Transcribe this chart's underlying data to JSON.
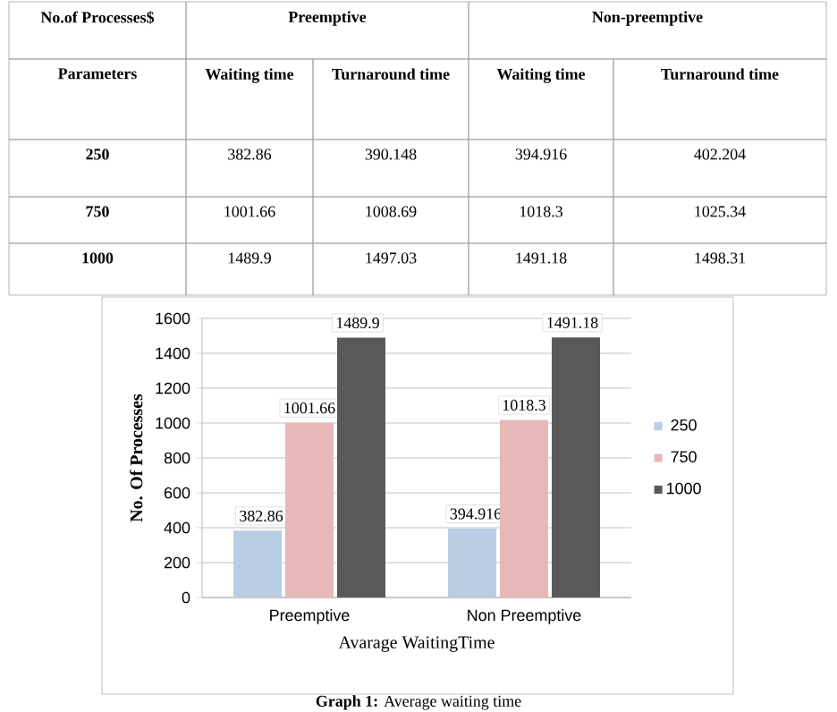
{
  "chart_data": [
    {
      "type": "other",
      "annotations": [
        "No.of Processes$",
        "Preemptive",
        "Non-preemptive",
        "Parameters",
        "Waiting time",
        "Turnaround time",
        "Waiting time",
        "Turnaround time",
        "250",
        "382.86",
        "390.148",
        "394.916",
        "402.204",
        "750",
        "1001.66",
        "1008.69",
        "1018.3",
        "1025.34",
        "1000",
        "1489.9",
        "1497.03",
        "1491.18",
        "1498.31"
      ]
    },
    {
      "type": "bar",
      "categories": [
        "Preemptive",
        "Non Preemptive"
      ],
      "series": [
        {
          "name": "250",
          "color": "#b9cde5",
          "values": [
            382.86,
            394.916
          ],
          "value_labels": [
            "382.86",
            "394.916"
          ]
        },
        {
          "name": "750",
          "color": "#e6b9b8",
          "values": [
            1001.66,
            1018.3
          ],
          "value_labels": [
            "1001.66",
            "1018.3"
          ]
        },
        {
          "name": "1000",
          "color": "#595959",
          "values": [
            1489.9,
            1491.18
          ],
          "value_labels": [
            "1489.9",
            "1491.18"
          ]
        }
      ],
      "ylim": [
        0,
        1600
      ],
      "yticks": [
        0,
        200,
        400,
        600,
        800,
        1000,
        1200,
        1400,
        1600
      ],
      "xlabel": "Avarage WaitingTime",
      "ylabel": "No. Of Processes",
      "grid": "y",
      "legend": "right",
      "annotations": [
        "**Graph 1:** Average waiting time"
      ]
    }
  ]
}
